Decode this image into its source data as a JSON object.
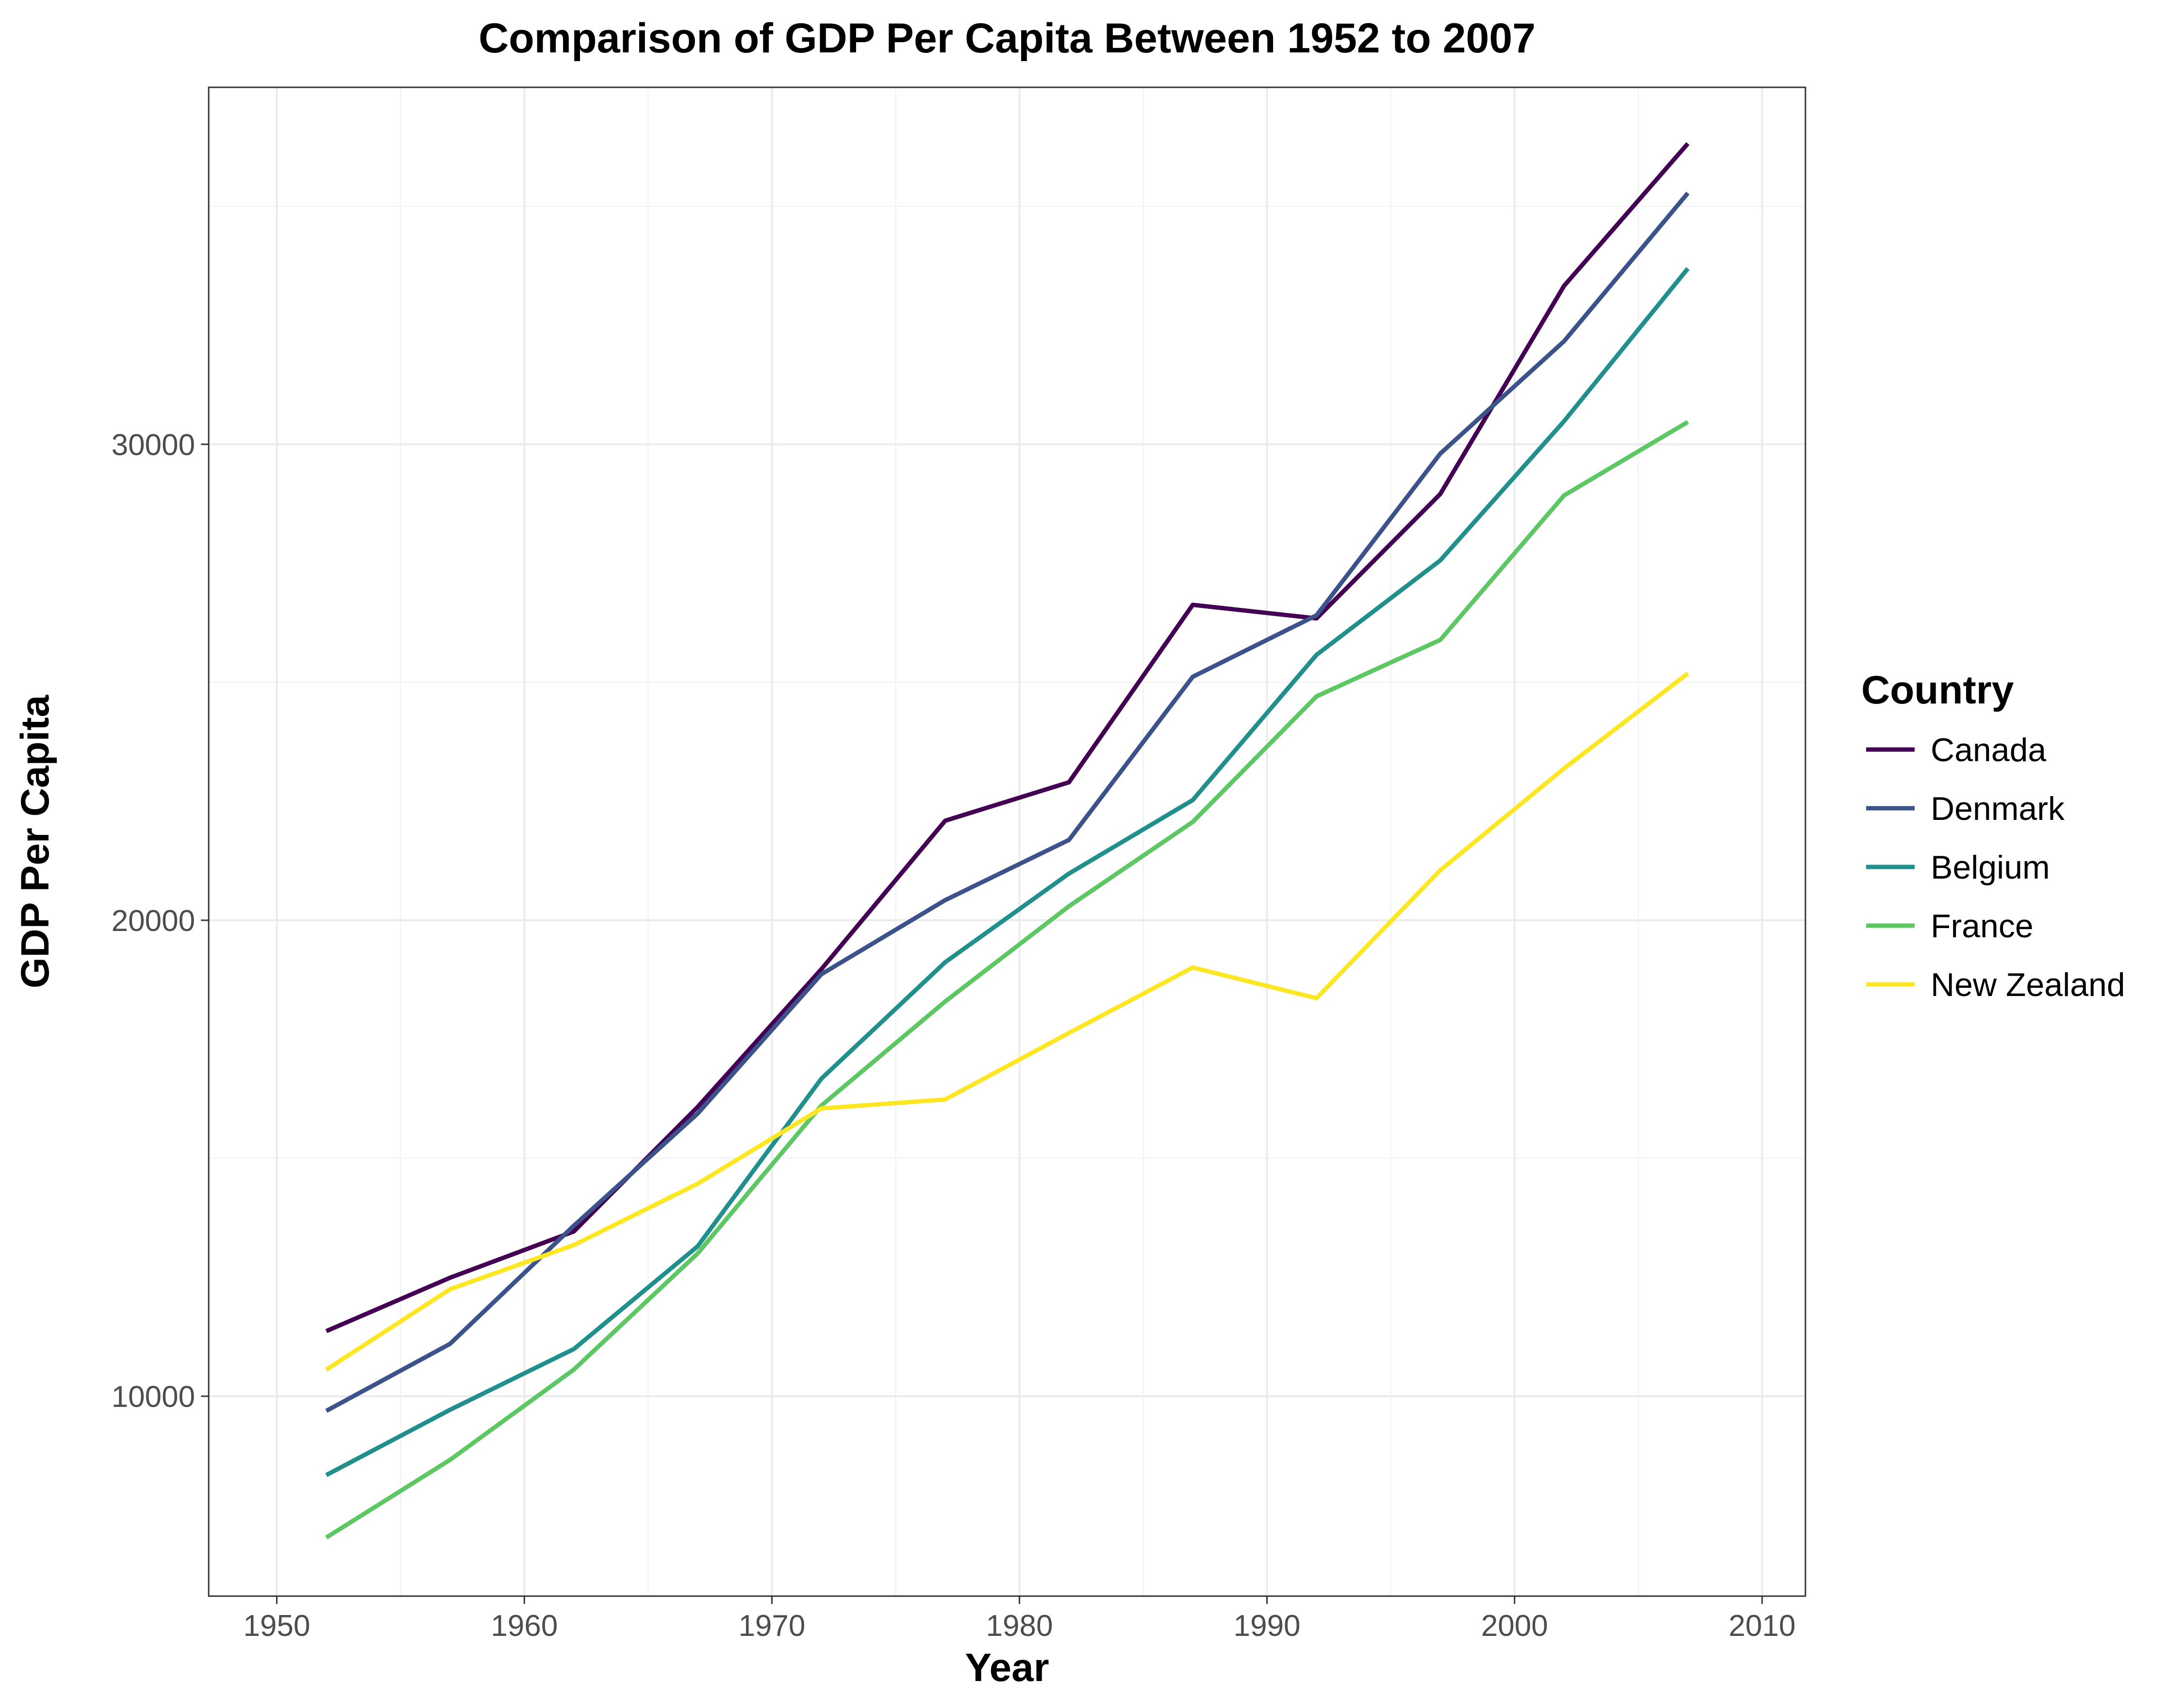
{
  "chart_data": {
    "type": "line",
    "title": "Comparison of GDP Per Capita Between 1952 to 2007",
    "xlabel": "Year",
    "ylabel": "GDP Per Capita",
    "x": [
      1952,
      1957,
      1962,
      1967,
      1972,
      1977,
      1982,
      1987,
      1992,
      1997,
      2002,
      2007
    ],
    "xlim": [
      1947.25,
      2011.75
    ],
    "ylim": [
      5800,
      37500
    ],
    "x_ticks": [
      1950,
      1960,
      1970,
      1980,
      1990,
      2000,
      2010
    ],
    "x_minor_ticks": [
      1955,
      1965,
      1975,
      1985,
      1995,
      2005
    ],
    "y_ticks": [
      10000,
      20000,
      30000
    ],
    "y_minor_ticks": [
      15000,
      25000,
      35000
    ],
    "grid": true,
    "legend": {
      "title": "Country",
      "position": "right"
    },
    "series": [
      {
        "name": "Canada",
        "color": "#440154",
        "values": [
          11367,
          12490,
          13462,
          16077,
          18971,
          22091,
          22899,
          26627,
          26343,
          28955,
          33329,
          36319
        ]
      },
      {
        "name": "Denmark",
        "color": "#3b528b",
        "values": [
          9692,
          11100,
          13583,
          15937,
          18866,
          20423,
          21688,
          25116,
          26407,
          29804,
          32166,
          35278
        ]
      },
      {
        "name": "Belgium",
        "color": "#21908c",
        "values": [
          8343,
          9715,
          10991,
          13149,
          16672,
          19118,
          20980,
          22526,
          25576,
          27561,
          30486,
          33693
        ]
      },
      {
        "name": "France",
        "color": "#5dc863",
        "values": [
          7030,
          8663,
          10560,
          12999,
          16107,
          18293,
          20294,
          22066,
          24704,
          25890,
          28926,
          30470
        ]
      },
      {
        "name": "New Zealand",
        "color": "#fde725",
        "values": [
          10557,
          12247,
          13176,
          14464,
          16046,
          16234,
          17632,
          19007,
          18363,
          21050,
          23190,
          25185
        ]
      }
    ]
  }
}
